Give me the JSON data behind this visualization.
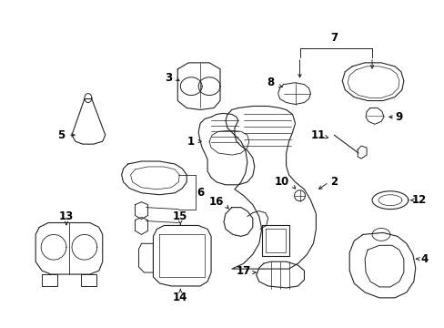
{
  "bg_color": "#ffffff",
  "line_color": "#222222",
  "text_color": "#000000",
  "figsize": [
    4.89,
    3.6
  ],
  "dpi": 100,
  "lw": 0.8
}
